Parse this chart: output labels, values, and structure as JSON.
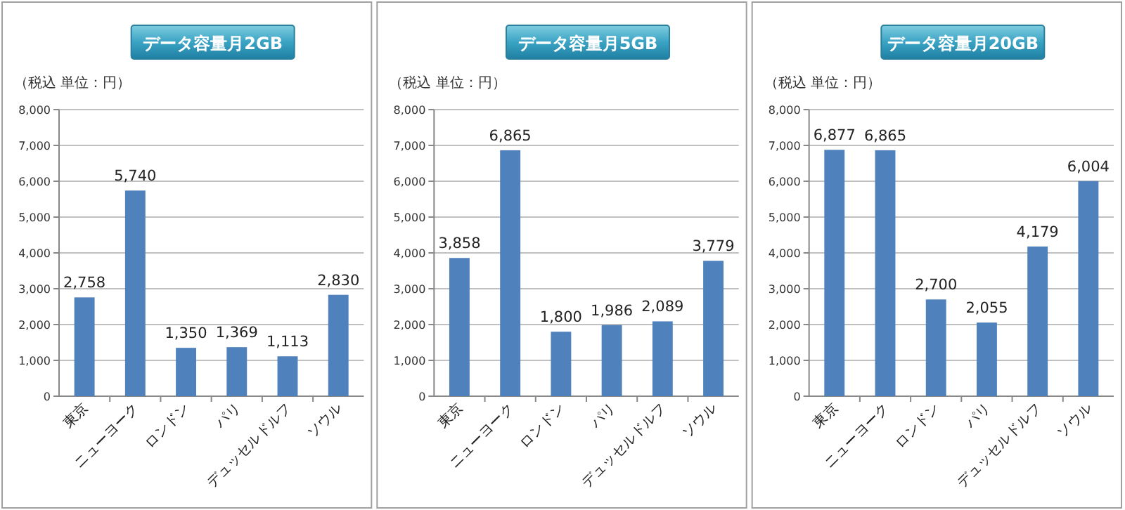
{
  "chart_data": [
    {
      "type": "bar",
      "title": "データ容量月2GB",
      "subtitle": "（税込 単位：円）",
      "categories": [
        "東京",
        "ニューヨーク",
        "ロンドン",
        "パリ",
        "デュッセルドルフ",
        "ソウル"
      ],
      "values": [
        2758,
        5740,
        1350,
        1369,
        1113,
        2830
      ],
      "value_labels": [
        "2,758",
        "5,740",
        "1,350",
        "1,369",
        "1,113",
        "2,830"
      ],
      "color": "#4f81bd",
      "ylim": [
        0,
        8000
      ],
      "yticks": [
        {
          "value": 0,
          "label": "0"
        },
        {
          "value": 1000,
          "label": "1,000"
        },
        {
          "value": 2000,
          "label": "2,000"
        },
        {
          "value": 3000,
          "label": "3,000"
        },
        {
          "value": 4000,
          "label": "4,000"
        },
        {
          "value": 5000,
          "label": "5,000"
        },
        {
          "value": 6000,
          "label": "6,000"
        },
        {
          "value": 7000,
          "label": "7,000"
        },
        {
          "value": 8000,
          "label": "8,000"
        }
      ],
      "grid": "y"
    },
    {
      "type": "bar",
      "title": "データ容量月5GB",
      "subtitle": "（税込 単位：円）",
      "categories": [
        "東京",
        "ニューヨーク",
        "ロンドン",
        "パリ",
        "デュッセルドルフ",
        "ソウル"
      ],
      "values": [
        3858,
        6865,
        1800,
        1986,
        2089,
        3779
      ],
      "value_labels": [
        "3,858",
        "6,865",
        "1,800",
        "1,986",
        "2,089",
        "3,779"
      ],
      "color": "#4f81bd",
      "ylim": [
        0,
        8000
      ],
      "yticks": [
        {
          "value": 0,
          "label": "0"
        },
        {
          "value": 1000,
          "label": "1,000"
        },
        {
          "value": 2000,
          "label": "2,000"
        },
        {
          "value": 3000,
          "label": "3,000"
        },
        {
          "value": 4000,
          "label": "4,000"
        },
        {
          "value": 5000,
          "label": "5,000"
        },
        {
          "value": 6000,
          "label": "6,000"
        },
        {
          "value": 7000,
          "label": "7,000"
        },
        {
          "value": 8000,
          "label": "8,000"
        }
      ],
      "grid": "y"
    },
    {
      "type": "bar",
      "title": "データ容量月20GB",
      "subtitle": "（税込 単位：円）",
      "categories": [
        "東京",
        "ニューヨーク",
        "ロンドン",
        "パリ",
        "デュッセルドルフ",
        "ソウル"
      ],
      "values": [
        6877,
        6865,
        2700,
        2055,
        4179,
        6004
      ],
      "value_labels": [
        "6,877",
        "6,865",
        "2,700",
        "2,055",
        "4,179",
        "6,004"
      ],
      "color": "#4f81bd",
      "ylim": [
        0,
        8000
      ],
      "yticks": [
        {
          "value": 0,
          "label": "0"
        },
        {
          "value": 1000,
          "label": "1,000"
        },
        {
          "value": 2000,
          "label": "2,000"
        },
        {
          "value": 3000,
          "label": "3,000"
        },
        {
          "value": 4000,
          "label": "4,000"
        },
        {
          "value": 5000,
          "label": "5,000"
        },
        {
          "value": 6000,
          "label": "6,000"
        },
        {
          "value": 7000,
          "label": "7,000"
        },
        {
          "value": 8000,
          "label": "8,000"
        }
      ],
      "grid": "y"
    }
  ]
}
